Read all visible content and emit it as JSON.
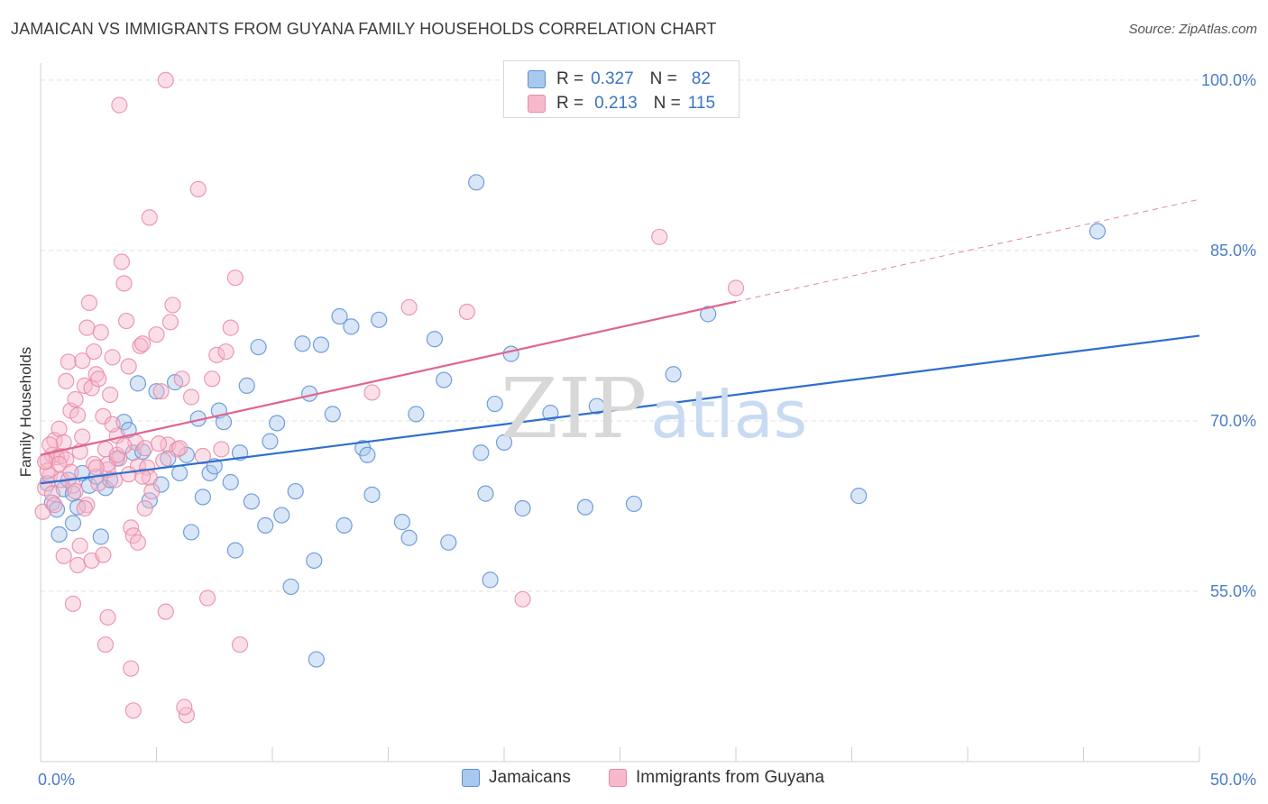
{
  "title": "JAMAICAN VS IMMIGRANTS FROM GUYANA FAMILY HOUSEHOLDS CORRELATION CHART",
  "source": "Source: ZipAtlas.com",
  "watermark": {
    "zip": "ZIP",
    "atlas": "atlas"
  },
  "colors": {
    "blue_fill": "#a9c8ee",
    "blue_stroke": "#5b8fd6",
    "blue_line": "#2d6fcf",
    "pink_fill": "#f6b9cb",
    "pink_stroke": "#e989a6",
    "pink_line": "#e0648e",
    "grid": "#e2e2e2",
    "tick_label": "#4a7cc7"
  },
  "legend": {
    "rows": [
      {
        "r_label": "R =",
        "r_value": "0.327",
        "n_label": "N =",
        "n_value": "82"
      },
      {
        "r_label": "R =",
        "r_value": "0.213",
        "n_label": "N =",
        "n_value": "115"
      }
    ]
  },
  "chart_data": {
    "type": "scatter",
    "title": "JAMAICAN VS IMMIGRANTS FROM GUYANA FAMILY HOUSEHOLDS CORRELATION CHART",
    "xlabel": "",
    "ylabel": "Family Households",
    "xlim": [
      0,
      50
    ],
    "ylim": [
      40,
      101.5
    ],
    "x_tick_labels": [
      "0.0%",
      "50.0%"
    ],
    "y_ticks": [
      55,
      70,
      85,
      100
    ],
    "y_tick_labels": [
      "55.0%",
      "70.0%",
      "85.0%",
      "100.0%"
    ],
    "grid": true,
    "legend_position": "top-center",
    "series": [
      {
        "name": "Jamaicans",
        "r": 0.327,
        "n": 82,
        "trend": {
          "x0": 0,
          "y0": 64.5,
          "x1": 50,
          "y1": 77.5
        },
        "points": [
          [
            0.3,
            64.5
          ],
          [
            0.5,
            62.8
          ],
          [
            0.7,
            62.2
          ],
          [
            0.8,
            60.0
          ],
          [
            1.0,
            64.0
          ],
          [
            1.2,
            64.8
          ],
          [
            1.4,
            63.6
          ],
          [
            1.6,
            62.4
          ],
          [
            1.8,
            65.4
          ],
          [
            2.1,
            64.3
          ],
          [
            2.4,
            65.1
          ],
          [
            2.6,
            59.8
          ],
          [
            2.8,
            64.1
          ],
          [
            3.0,
            64.8
          ],
          [
            3.3,
            66.7
          ],
          [
            3.6,
            69.9
          ],
          [
            3.8,
            69.2
          ],
          [
            4.0,
            67.2
          ],
          [
            4.2,
            73.3
          ],
          [
            4.4,
            67.3
          ],
          [
            4.7,
            63.0
          ],
          [
            5.0,
            72.6
          ],
          [
            5.2,
            64.4
          ],
          [
            5.5,
            66.7
          ],
          [
            5.8,
            73.4
          ],
          [
            6.0,
            65.4
          ],
          [
            6.3,
            67.0
          ],
          [
            6.5,
            60.2
          ],
          [
            6.8,
            70.2
          ],
          [
            7.0,
            63.3
          ],
          [
            7.3,
            65.4
          ],
          [
            7.5,
            66.0
          ],
          [
            7.7,
            70.9
          ],
          [
            7.9,
            69.9
          ],
          [
            8.2,
            64.6
          ],
          [
            8.4,
            58.6
          ],
          [
            8.6,
            67.2
          ],
          [
            8.9,
            73.1
          ],
          [
            9.1,
            62.9
          ],
          [
            9.4,
            76.5
          ],
          [
            9.7,
            60.8
          ],
          [
            9.9,
            68.2
          ],
          [
            10.2,
            69.8
          ],
          [
            10.4,
            61.7
          ],
          [
            10.8,
            55.4
          ],
          [
            11.0,
            63.8
          ],
          [
            11.3,
            76.8
          ],
          [
            11.6,
            72.4
          ],
          [
            11.8,
            57.7
          ],
          [
            12.1,
            76.7
          ],
          [
            12.6,
            70.6
          ],
          [
            12.9,
            79.2
          ],
          [
            13.1,
            60.8
          ],
          [
            13.4,
            78.3
          ],
          [
            13.9,
            67.6
          ],
          [
            14.1,
            67.0
          ],
          [
            14.3,
            63.5
          ],
          [
            14.6,
            78.9
          ],
          [
            15.6,
            61.1
          ],
          [
            15.9,
            59.7
          ],
          [
            16.2,
            70.6
          ],
          [
            17.0,
            77.2
          ],
          [
            17.4,
            73.6
          ],
          [
            17.6,
            59.3
          ],
          [
            18.8,
            91.0
          ],
          [
            19.0,
            67.2
          ],
          [
            19.2,
            63.6
          ],
          [
            19.4,
            56.0
          ],
          [
            19.6,
            71.5
          ],
          [
            20.0,
            68.1
          ],
          [
            20.3,
            75.9
          ],
          [
            20.8,
            62.3
          ],
          [
            22.0,
            70.7
          ],
          [
            23.5,
            62.4
          ],
          [
            24.0,
            71.3
          ],
          [
            25.6,
            62.7
          ],
          [
            27.3,
            74.1
          ],
          [
            28.8,
            79.4
          ],
          [
            35.3,
            63.4
          ],
          [
            45.6,
            86.7
          ],
          [
            11.9,
            49.0
          ],
          [
            1.4,
            61.0
          ]
        ]
      },
      {
        "name": "Immigrants from Guyana",
        "r": 0.213,
        "n": 115,
        "trend": {
          "x0": 0,
          "y0": 67.0,
          "x1": 30,
          "y1": 80.5
        },
        "trend_ext": {
          "x0": 30,
          "y0": 80.5,
          "x1": 50,
          "y1": 89.5
        },
        "points": [
          [
            0.1,
            62.0
          ],
          [
            0.2,
            64.1
          ],
          [
            0.3,
            66.5
          ],
          [
            0.4,
            65.2
          ],
          [
            0.5,
            67.0
          ],
          [
            0.6,
            68.3
          ],
          [
            0.7,
            66.8
          ],
          [
            0.8,
            69.3
          ],
          [
            0.9,
            66.9
          ],
          [
            1.0,
            58.1
          ],
          [
            1.1,
            73.5
          ],
          [
            1.2,
            75.2
          ],
          [
            1.3,
            70.9
          ],
          [
            1.4,
            64.3
          ],
          [
            1.5,
            71.9
          ],
          [
            1.6,
            70.5
          ],
          [
            1.7,
            67.3
          ],
          [
            1.8,
            75.3
          ],
          [
            1.9,
            73.1
          ],
          [
            2.0,
            78.2
          ],
          [
            2.1,
            80.4
          ],
          [
            2.2,
            72.9
          ],
          [
            2.3,
            76.1
          ],
          [
            2.4,
            74.1
          ],
          [
            2.5,
            73.7
          ],
          [
            2.6,
            77.8
          ],
          [
            2.7,
            70.4
          ],
          [
            2.8,
            67.5
          ],
          [
            2.9,
            65.7
          ],
          [
            3.0,
            72.3
          ],
          [
            3.1,
            75.6
          ],
          [
            3.2,
            64.8
          ],
          [
            3.3,
            68.7
          ],
          [
            3.4,
            66.7
          ],
          [
            3.5,
            84.0
          ],
          [
            3.6,
            82.1
          ],
          [
            3.7,
            78.8
          ],
          [
            3.8,
            74.8
          ],
          [
            3.9,
            60.6
          ],
          [
            4.0,
            59.9
          ],
          [
            4.1,
            68.1
          ],
          [
            4.2,
            66.0
          ],
          [
            4.3,
            76.6
          ],
          [
            4.4,
            76.8
          ],
          [
            4.5,
            62.3
          ],
          [
            4.6,
            65.9
          ],
          [
            4.7,
            65.0
          ],
          [
            4.8,
            63.8
          ],
          [
            5.0,
            77.6
          ],
          [
            5.2,
            72.6
          ],
          [
            5.4,
            53.2
          ],
          [
            5.5,
            67.9
          ],
          [
            5.6,
            78.7
          ],
          [
            5.7,
            80.2
          ],
          [
            5.9,
            67.5
          ],
          [
            6.1,
            73.7
          ],
          [
            6.3,
            44.1
          ],
          [
            6.5,
            72.1
          ],
          [
            6.8,
            90.4
          ],
          [
            7.0,
            66.9
          ],
          [
            7.2,
            54.4
          ],
          [
            7.4,
            73.7
          ],
          [
            7.6,
            75.8
          ],
          [
            7.8,
            67.5
          ],
          [
            8.0,
            76.1
          ],
          [
            8.2,
            78.2
          ],
          [
            8.4,
            82.6
          ],
          [
            8.6,
            50.3
          ],
          [
            3.4,
            97.8
          ],
          [
            5.4,
            100.0
          ],
          [
            4.7,
            87.9
          ],
          [
            15.9,
            80.0
          ],
          [
            18.4,
            79.6
          ],
          [
            26.7,
            86.2
          ],
          [
            30.0,
            81.7
          ],
          [
            20.8,
            54.3
          ],
          [
            14.3,
            72.5
          ],
          [
            3.9,
            48.2
          ],
          [
            2.8,
            50.3
          ],
          [
            2.9,
            52.7
          ],
          [
            4.0,
            44.5
          ],
          [
            6.2,
            44.8
          ],
          [
            1.4,
            53.9
          ],
          [
            1.6,
            57.3
          ],
          [
            2.2,
            57.7
          ],
          [
            2.7,
            58.2
          ],
          [
            1.7,
            59.0
          ],
          [
            4.2,
            59.3
          ],
          [
            2.0,
            62.6
          ],
          [
            0.3,
            65.6
          ],
          [
            0.5,
            63.6
          ],
          [
            0.9,
            64.8
          ],
          [
            1.0,
            68.1
          ],
          [
            1.1,
            66.6
          ],
          [
            1.3,
            65.5
          ],
          [
            1.5,
            63.8
          ],
          [
            1.8,
            68.6
          ],
          [
            2.3,
            66.2
          ],
          [
            2.5,
            64.5
          ],
          [
            2.9,
            66.2
          ],
          [
            3.1,
            69.7
          ],
          [
            3.3,
            67.0
          ],
          [
            3.6,
            67.8
          ],
          [
            3.8,
            65.3
          ],
          [
            4.4,
            65.1
          ],
          [
            4.5,
            67.6
          ],
          [
            5.1,
            68.0
          ],
          [
            5.3,
            66.5
          ],
          [
            6.0,
            67.6
          ],
          [
            0.2,
            66.4
          ],
          [
            0.4,
            67.9
          ],
          [
            0.6,
            62.6
          ],
          [
            0.8,
            66.2
          ],
          [
            1.9,
            62.3
          ],
          [
            2.4,
            65.9
          ]
        ]
      }
    ]
  }
}
